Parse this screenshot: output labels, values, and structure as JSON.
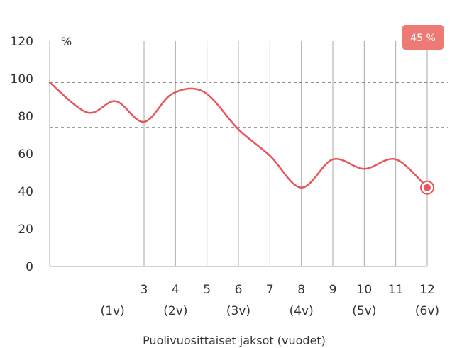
{
  "chart_data": {
    "type": "line",
    "ylabel": "%",
    "xlabel": "Puolivuosittaiset jaksot (vuodet)",
    "ylim": [
      0,
      120
    ],
    "yticks": [
      0,
      20,
      40,
      60,
      80,
      100,
      120
    ],
    "x_ticks": [
      {
        "x": 3,
        "label": "3"
      },
      {
        "x": 4,
        "label": "4"
      },
      {
        "x": 5,
        "label": "5"
      },
      {
        "x": 6,
        "label": "6"
      },
      {
        "x": 7,
        "label": "7"
      },
      {
        "x": 8,
        "label": "8"
      },
      {
        "x": 9,
        "label": "9"
      },
      {
        "x": 10,
        "label": "10"
      },
      {
        "x": 11,
        "label": "11"
      },
      {
        "x": 12,
        "label": "12"
      }
    ],
    "x_year_labels": [
      {
        "x": 2,
        "label": "(1v)"
      },
      {
        "x": 4,
        "label": "(2v)"
      },
      {
        "x": 6,
        "label": "(3v)"
      },
      {
        "x": 8,
        "label": "(4v)"
      },
      {
        "x": 10,
        "label": "(5v)"
      },
      {
        "x": 12,
        "label": "(6v)"
      }
    ],
    "reference_lines": [
      98,
      74
    ],
    "series": [
      {
        "color": "#e8555a",
        "x": [
          0,
          1.2,
          2.1,
          3,
          3.9,
          4.9,
          6,
          7,
          8,
          9,
          10,
          11,
          12
        ],
        "y": [
          98,
          82,
          88,
          77,
          92,
          93,
          73,
          59,
          42,
          57,
          52,
          57,
          42
        ]
      }
    ],
    "end_marker": {
      "x": 12,
      "y": 42
    },
    "badge": "45 %",
    "grid": "vertical",
    "colors": {
      "line": "#e8555a",
      "badge": "#ee7a76",
      "grid": "#aaaaaa",
      "reference": "#666666"
    }
  }
}
